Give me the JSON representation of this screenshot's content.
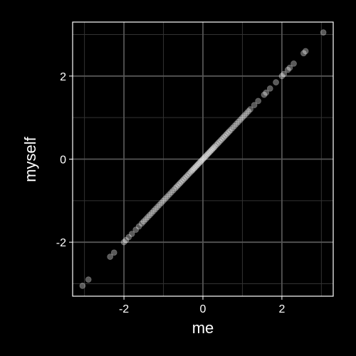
{
  "colors": {
    "background": "#000000",
    "panel_border": "#ffffff",
    "grid_major": "#555555",
    "grid_minor": "#333333",
    "point_fill": "#ffffff",
    "tick_text": "#ffffff"
  },
  "chart_data": {
    "type": "scatter",
    "title": "",
    "xlabel": "me",
    "ylabel": "myself",
    "xlim": [
      -3.3,
      3.3
    ],
    "ylim": [
      -3.3,
      3.3
    ],
    "grid": true,
    "x_ticks": [
      {
        "value": -2,
        "label": "-2"
      },
      {
        "value": 0,
        "label": "0"
      },
      {
        "value": 2,
        "label": "2"
      }
    ],
    "y_ticks": [
      {
        "value": -2,
        "label": "-2"
      },
      {
        "value": 0,
        "label": "0"
      },
      {
        "value": 2,
        "label": "2"
      }
    ],
    "minor_breaks": [
      -3,
      -1,
      1,
      3
    ],
    "series": [
      {
        "name": "points",
        "x": [
          -3.05,
          -2.9,
          -2.35,
          -2.25,
          -2.0,
          -1.95,
          -1.88,
          -1.8,
          -1.7,
          -1.62,
          -1.55,
          -1.5,
          -1.45,
          -1.4,
          -1.35,
          -1.3,
          -1.25,
          -1.2,
          -1.15,
          -1.1,
          -1.05,
          -1.0,
          -0.95,
          -0.9,
          -0.85,
          -0.8,
          -0.75,
          -0.7,
          -0.66,
          -0.62,
          -0.58,
          -0.54,
          -0.5,
          -0.46,
          -0.42,
          -0.38,
          -0.34,
          -0.3,
          -0.27,
          -0.24,
          -0.21,
          -0.18,
          -0.15,
          -0.12,
          -0.09,
          -0.06,
          -0.03,
          0.0,
          0.03,
          0.06,
          0.09,
          0.12,
          0.15,
          0.18,
          0.21,
          0.24,
          0.27,
          0.3,
          0.34,
          0.38,
          0.42,
          0.46,
          0.5,
          0.54,
          0.58,
          0.62,
          0.66,
          0.7,
          0.75,
          0.8,
          0.85,
          0.9,
          0.95,
          1.0,
          1.05,
          1.1,
          1.15,
          1.2,
          1.3,
          1.4,
          1.55,
          1.6,
          1.7,
          1.85,
          2.0,
          2.05,
          2.15,
          2.2,
          2.3,
          2.55,
          2.6,
          3.05
        ],
        "y": [
          -3.05,
          -2.9,
          -2.35,
          -2.25,
          -2.0,
          -1.95,
          -1.88,
          -1.8,
          -1.7,
          -1.62,
          -1.55,
          -1.5,
          -1.45,
          -1.4,
          -1.35,
          -1.3,
          -1.25,
          -1.2,
          -1.15,
          -1.1,
          -1.05,
          -1.0,
          -0.95,
          -0.9,
          -0.85,
          -0.8,
          -0.75,
          -0.7,
          -0.66,
          -0.62,
          -0.58,
          -0.54,
          -0.5,
          -0.46,
          -0.42,
          -0.38,
          -0.34,
          -0.3,
          -0.27,
          -0.24,
          -0.21,
          -0.18,
          -0.15,
          -0.12,
          -0.09,
          -0.06,
          -0.03,
          0.0,
          0.03,
          0.06,
          0.09,
          0.12,
          0.15,
          0.18,
          0.21,
          0.24,
          0.27,
          0.3,
          0.34,
          0.38,
          0.42,
          0.46,
          0.5,
          0.54,
          0.58,
          0.62,
          0.66,
          0.7,
          0.75,
          0.8,
          0.85,
          0.9,
          0.95,
          1.0,
          1.05,
          1.1,
          1.15,
          1.2,
          1.3,
          1.4,
          1.55,
          1.6,
          1.7,
          1.85,
          2.0,
          2.05,
          2.15,
          2.2,
          2.3,
          2.55,
          2.6,
          3.05
        ]
      }
    ]
  }
}
